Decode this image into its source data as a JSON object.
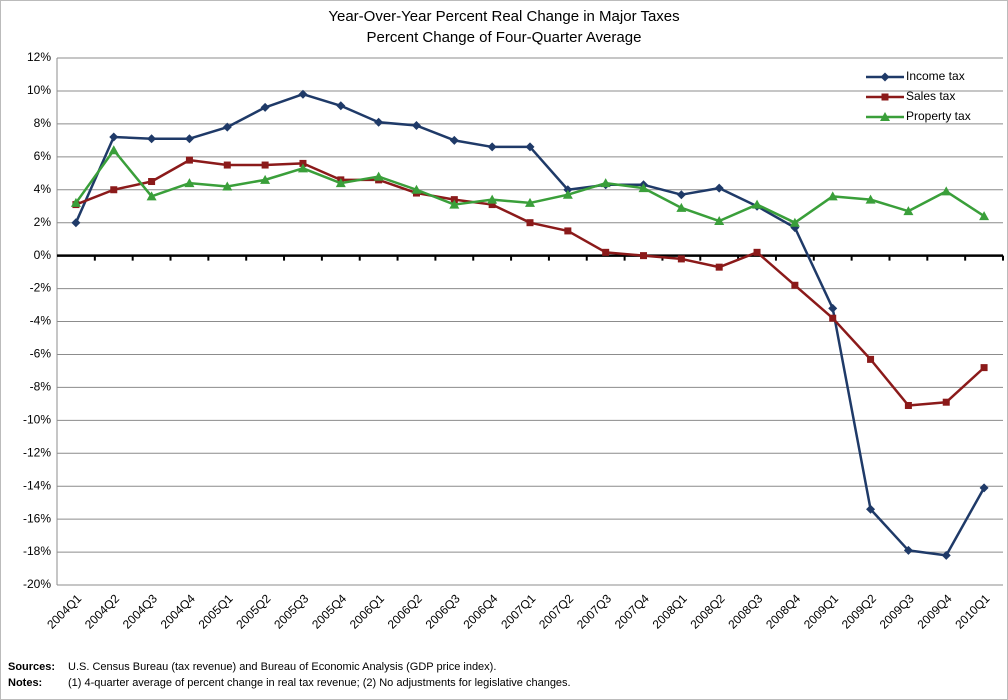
{
  "chart_data": {
    "type": "line",
    "title": "Year-Over-Year Percent Real Change in Major Taxes",
    "subtitle": "Percent Change of Four-Quarter Average",
    "categories": [
      "2004Q1",
      "2004Q2",
      "2004Q3",
      "2004Q4",
      "2005Q1",
      "2005Q2",
      "2005Q3",
      "2005Q4",
      "2006Q1",
      "2006Q2",
      "2006Q3",
      "2006Q4",
      "2007Q1",
      "2007Q2",
      "2007Q3",
      "2007Q4",
      "2008Q1",
      "2008Q2",
      "2008Q3",
      "2008Q4",
      "2009Q1",
      "2009Q2",
      "2009Q3",
      "2009Q4",
      "2010Q1"
    ],
    "series": [
      {
        "name": "Income tax",
        "color": "#1f3a68",
        "marker": "diamond",
        "values": [
          2.0,
          7.2,
          7.1,
          7.1,
          7.8,
          9.0,
          9.8,
          9.1,
          8.1,
          7.9,
          7.0,
          6.6,
          6.6,
          4.0,
          4.3,
          4.3,
          3.7,
          4.1,
          3.0,
          1.7,
          -3.2,
          -15.4,
          -17.9,
          -18.2,
          -14.1
        ]
      },
      {
        "name": "Sales tax",
        "color": "#8b1a1a",
        "marker": "square",
        "values": [
          3.1,
          4.0,
          4.5,
          5.8,
          5.5,
          5.5,
          5.6,
          4.6,
          4.6,
          3.8,
          3.4,
          3.1,
          2.0,
          1.5,
          0.2,
          0.0,
          -0.2,
          -0.7,
          0.2,
          -1.8,
          -3.8,
          -6.3,
          -9.1,
          -8.9,
          -6.8
        ]
      },
      {
        "name": "Property tax",
        "color": "#3a9f3a",
        "marker": "triangle",
        "values": [
          3.2,
          6.4,
          3.6,
          4.4,
          4.2,
          4.6,
          5.3,
          4.4,
          4.8,
          4.0,
          3.1,
          3.4,
          3.2,
          3.7,
          4.4,
          4.1,
          2.9,
          2.1,
          3.1,
          2.0,
          3.6,
          3.4,
          2.7,
          3.9,
          2.4
        ]
      }
    ],
    "ylim": [
      -20,
      12
    ],
    "yticks": [
      {
        "value": -20,
        "label": "-20%"
      },
      {
        "value": -18,
        "label": "-18%"
      },
      {
        "value": -16,
        "label": "-16%"
      },
      {
        "value": -14,
        "label": "-14%"
      },
      {
        "value": -12,
        "label": "-12%"
      },
      {
        "value": -10,
        "label": "-10%"
      },
      {
        "value": -8,
        "label": "-8%"
      },
      {
        "value": -6,
        "label": "-6%"
      },
      {
        "value": -4,
        "label": "-4%"
      },
      {
        "value": -2,
        "label": "-2%"
      },
      {
        "value": 0,
        "label": "0%"
      },
      {
        "value": 2,
        "label": "2%"
      },
      {
        "value": 4,
        "label": "4%"
      },
      {
        "value": 6,
        "label": "6%"
      },
      {
        "value": 8,
        "label": "8%"
      },
      {
        "value": 10,
        "label": "10%"
      },
      {
        "value": 12,
        "label": "12%"
      }
    ],
    "grid": true,
    "legend": "upper right",
    "sources_label": "Sources:",
    "sources": "U.S. Census Bureau (tax revenue) and Bureau of Economic Analysis (GDP price index).",
    "notes_label": "Notes:",
    "notes": "(1) 4-quarter average of percent change in real tax revenue; (2) No adjustments for legislative changes."
  }
}
